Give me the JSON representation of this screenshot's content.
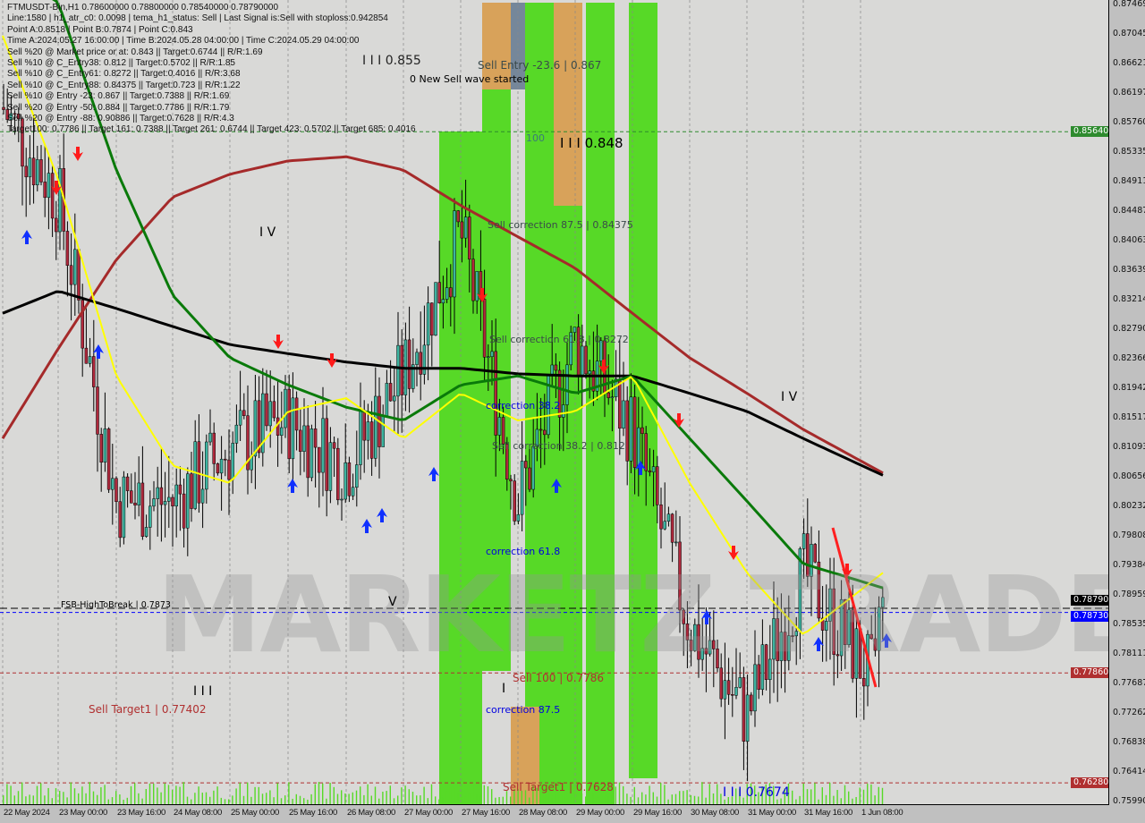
{
  "header": {
    "symbol_line": "FTMUSDT-Bin,H1  0.78600000 0.78800000 0.78540000 0.78790000",
    "lines": [
      "Line:1580 | h1_atr_c0: 0.0098 | tema_h1_status: Sell | Last Signal is:Sell with stoploss:0.942854",
      "Point A:0.8518 | Point B:0.7874 | Point C:0.843",
      "Time A:2024.05.27 16:00:00 | Time B:2024.05.28 04:00:00 | Time C:2024.05.29 04:00:00",
      "Sell %20 @ Market price or at: 0.843 || Target:0.6744 || R/R:1.69",
      "Sell %10 @ C_Entry38: 0.812 || Target:0.5702 || R/R:1.85",
      "Sell %10 @ C_Entry61: 0.8272 || Target:0.4016 || R/R:3.68",
      "Sell %10 @ C_Entry88: 0.84375 || Target:0.723 || R/R:1.22",
      "Sell %10 @ Entry -23: 0.867 || Target:0.7388 || R/R:1.69",
      "Sell %20 @ Entry -50: 0.884 || Target:0.7786 || R/R:1.79",
      "Sell %20 @ Entry -88: 0.90886 || Target:0.7628 || R/R:4.3",
      "Target100: 0.7786 || Target 161: 0.7388 || Target 261: 0.6744 || Target 423: 0.5702 || Target 685: 0.4016"
    ]
  },
  "annotations": {
    "sell_entry": "Sell Entry -23.6 | 0.867",
    "new_wave": "0 New Sell wave started",
    "level_100": "100",
    "wave3_high": "I I I 0.848",
    "wave3_top": "I I I 0.855",
    "sell_corr_875": "Sell correction 87.5 | 0.84375",
    "sell_corr_618": "Sell correction 61.8 | 0.8272",
    "corr_382": "correction 38.2",
    "sell_corr_382": "Sell correction 38.2 | 0.812",
    "corr_618": "correction 61.8",
    "corr_875": "correction 87.5",
    "sell_100": "Sell 100 | 0.7786",
    "sell_target1_mid": "Sell Target1 | 0.7628",
    "sell_target1_left": "Sell Target1 | 0.77402",
    "wave_low": "I I I 0.7674",
    "fsb": "FSB-HighToBreak | 0.7873",
    "wave_iv_left": "I V",
    "wave_iv_right": "I V",
    "wave_v": "V",
    "wave_iii_left": "I I I",
    "wave_i": "I",
    "watermark": "MARKETZ TRADE"
  },
  "colors": {
    "bg": "#d9d9d7",
    "green_zone": "#57d927",
    "orange_zone": "#d8a25a",
    "gray_zone": "#75879a",
    "ma_red": "#a52a2a",
    "ma_black": "#000000",
    "ma_green": "#0a7a0a",
    "ma_yellow": "#ffff00",
    "bull": "#3cb4a0",
    "bear": "#b0283c"
  },
  "chart_data": {
    "type": "candlestick",
    "title": "FTMUSDT-Bin,H1",
    "x_ticks": [
      "22 May 2024",
      "23 May 00:00",
      "23 May 16:00",
      "24 May 08:00",
      "25 May 00:00",
      "25 May 16:00",
      "26 May 08:00",
      "27 May 00:00",
      "27 May 16:00",
      "28 May 08:00",
      "29 May 00:00",
      "29 May 16:00",
      "30 May 08:00",
      "31 May 00:00",
      "31 May 16:00",
      "1 Jun 08:00"
    ],
    "y_ticks": [
      "0.87469",
      "0.87045",
      "0.86621",
      "0.86197",
      "0.85760",
      "0.85335",
      "0.84911",
      "0.84487",
      "0.84063",
      "0.83639",
      "0.83214",
      "0.82790",
      "0.82366",
      "0.81942",
      "0.81517",
      "0.81093",
      "0.80656",
      "0.80232",
      "0.79808",
      "0.79384",
      "0.78959",
      "0.78535",
      "0.78111",
      "0.77687",
      "0.77262",
      "0.76838",
      "0.76414",
      "0.75990"
    ],
    "ylim": [
      0.7593,
      0.8753
    ],
    "last": {
      "open": 0.786,
      "high": 0.788,
      "low": 0.7854,
      "close": 0.7879
    },
    "approx_close": [
      0.8599,
      0.847,
      0.8033,
      0.8033,
      0.811,
      0.8149,
      0.8084,
      0.8213,
      0.8419,
      0.8033,
      0.8265,
      0.8136,
      0.7853,
      0.7724,
      0.793,
      0.7802
    ],
    "series": [
      {
        "color": "#a52a2a",
        "values": [
          0.8123,
          0.8252,
          0.838,
          0.847,
          0.8503,
          0.8522,
          0.8528,
          0.8509,
          0.8458,
          0.8413,
          0.8368,
          0.8303,
          0.8239,
          0.8188,
          0.8136,
          0.8091
        ]
      },
      {
        "color": "#000000",
        "values": [
          0.8303,
          0.8335,
          0.831,
          0.8284,
          0.8258,
          0.8245,
          0.8233,
          0.8224,
          0.8224,
          0.8216,
          0.8213,
          0.8213,
          0.8188,
          0.8162,
          0.8123,
          0.8085
        ]
      },
      {
        "color": "#0a7a0a",
        "values": [
          0.88,
          0.875,
          0.8509,
          0.8329,
          0.8239,
          0.82,
          0.8168,
          0.8149,
          0.82,
          0.8213,
          0.8188,
          0.8213,
          0.8123,
          0.8033,
          0.7943,
          0.7918
        ]
      },
      {
        "color": "#ffff00",
        "values": [
          0.8702,
          0.8496,
          0.8213,
          0.8084,
          0.8059,
          0.8162,
          0.8181,
          0.8123,
          0.8188,
          0.8149,
          0.8162,
          0.8213,
          0.8059,
          0.793,
          0.7841,
          0.7905
        ]
      }
    ],
    "levels": [
      {
        "price": 0.8564,
        "label": "0.85640",
        "color": "#2e8b2e"
      },
      {
        "price": 0.7873,
        "label": "0.78730",
        "color": "#0000ff"
      },
      {
        "price": 0.7879,
        "label": "0.78790",
        "color": "#000000"
      },
      {
        "price": 0.7786,
        "label": "0.77860",
        "color": "#b03030"
      },
      {
        "price": 0.7628,
        "label": "0.76280",
        "color": "#b03030"
      }
    ]
  }
}
